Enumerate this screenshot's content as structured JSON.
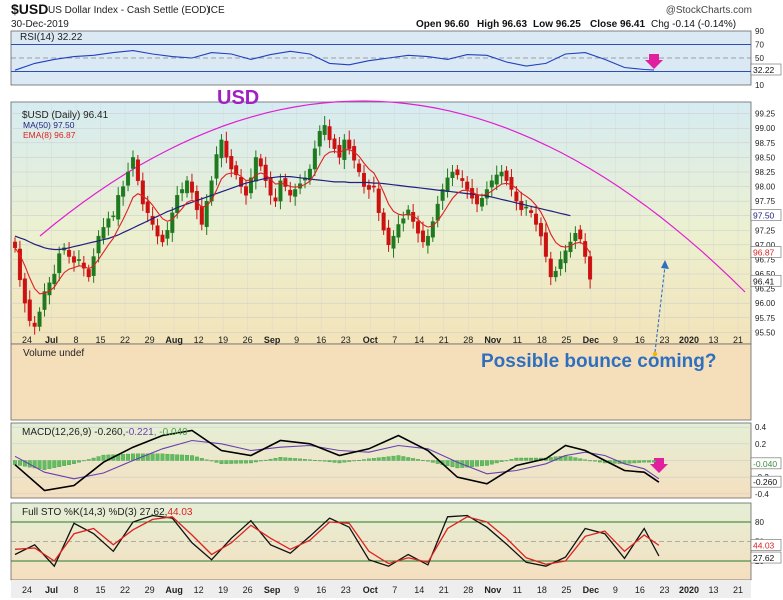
{
  "header": {
    "symbol": "$USD",
    "name": "US Dollar Index - Cash Settle (EOD)",
    "exchange": "ICE",
    "date": "30-Dec-2019",
    "brand": "@StockCharts.com",
    "ohlc": "Open 96.60  High 96.63  Low 96.25  Close 96.41  Volume undef  Chg -0.14 (-0.14%)",
    "ohlc_open": "Open 96.60",
    "ohlc_high": "High 96.63",
    "ohlc_low": "Low 96.25",
    "ohlc_close": "Close 96.41",
    "ohlc_chg": "Chg -0.14 (-0.14%)"
  },
  "colors": {
    "up": "#1f7a1f",
    "down": "#cc1111",
    "ema": "#e02020",
    "ma": "#202080",
    "arc": "#e020d0",
    "annotation_usd": "#a020c0",
    "annotation_bounce": "#2f6fc0",
    "rsi_line": "#2040c0",
    "macd_line": "#000000",
    "signal_line": "#6a3fb0",
    "hist": "#5fbf5f",
    "sto_k": "#111111",
    "sto_d": "#dd2222",
    "pink_arrow": "#e0209f"
  },
  "annotations": {
    "title": "USD",
    "bounce": "Possible bounce coming?"
  },
  "x_axis_labels": [
    "24",
    "Jul",
    "8",
    "15",
    "22",
    "29",
    "Aug",
    "12",
    "19",
    "26",
    "Sep",
    "9",
    "16",
    "23",
    "Oct",
    "7",
    "14",
    "21",
    "28",
    "Nov",
    "11",
    "18",
    "25",
    "Dec",
    "9",
    "16",
    "23",
    "2020",
    "13",
    "21"
  ],
  "chart_data": [
    {
      "type": "line",
      "panel": "rsi",
      "title": "RSI(14) 32.22",
      "ylim": [
        10,
        90
      ],
      "y_ticks": [
        "90",
        "70",
        "50",
        "30",
        "10"
      ],
      "reference_lines": [
        70,
        50,
        30
      ],
      "last_value_label": "32.22",
      "x": [
        0,
        4,
        8,
        12,
        16,
        20,
        24,
        28,
        32,
        36,
        40,
        44,
        48,
        52,
        56,
        60,
        64,
        68,
        72,
        76,
        80,
        84,
        88,
        92,
        96,
        100,
        104,
        108,
        112,
        116,
        120,
        124,
        128,
        130
      ],
      "values": [
        32,
        42,
        48,
        52,
        54,
        58,
        61,
        56,
        52,
        50,
        58,
        56,
        48,
        55,
        60,
        56,
        42,
        40,
        46,
        50,
        54,
        52,
        48,
        55,
        54,
        44,
        38,
        42,
        56,
        58,
        48,
        36,
        33,
        32.22
      ]
    },
    {
      "type": "candlestick",
      "panel": "price",
      "title": "$USD (Daily) 96.41",
      "legend": [
        {
          "label": "MA(50) 97.50"
        },
        {
          "label": "EMA(8) 96.87"
        }
      ],
      "ylim": [
        95.3,
        99.45
      ],
      "y_ticks": [
        "99.25",
        "99.00",
        "98.75",
        "98.50",
        "98.25",
        "98.00",
        "97.75",
        "97.50",
        "97.25",
        "97.00",
        "96.75",
        "96.50",
        "96.25",
        "96.00",
        "95.75",
        "95.50"
      ],
      "value_tags": [
        {
          "value": 97.5,
          "label": "97.50"
        },
        {
          "value": 96.87,
          "label": "96.87"
        },
        {
          "value": 96.41,
          "label": "96.41"
        }
      ],
      "close": [
        96.95,
        96.4,
        96.0,
        95.7,
        95.6,
        95.85,
        96.2,
        96.35,
        96.5,
        96.85,
        96.95,
        96.8,
        96.7,
        96.75,
        96.6,
        96.45,
        96.8,
        97.15,
        97.3,
        97.45,
        97.5,
        97.85,
        98.0,
        98.25,
        98.5,
        98.1,
        97.7,
        97.55,
        97.35,
        97.15,
        97.05,
        97.25,
        97.55,
        97.85,
        97.95,
        98.1,
        97.9,
        97.6,
        97.35,
        97.75,
        98.1,
        98.55,
        98.8,
        98.5,
        98.3,
        98.2,
        98.0,
        97.85,
        98.15,
        98.5,
        98.35,
        98.1,
        97.85,
        97.75,
        98.1,
        98.0,
        97.85,
        97.95,
        98.05,
        98.15,
        98.3,
        98.65,
        98.95,
        99.05,
        98.8,
        98.65,
        98.5,
        98.8,
        98.65,
        98.45,
        98.25,
        98.0,
        97.95,
        98.0,
        97.55,
        97.25,
        97.0,
        97.15,
        97.35,
        97.45,
        97.6,
        97.4,
        97.2,
        97.05,
        97.15,
        97.4,
        97.7,
        97.95,
        98.15,
        98.25,
        98.2,
        98.1,
        97.95,
        97.8,
        97.7,
        97.8,
        97.95,
        98.1,
        98.2,
        98.25,
        98.1,
        97.95,
        97.75,
        97.6,
        97.65,
        97.55,
        97.35,
        97.15,
        96.8,
        96.45,
        96.55,
        96.75,
        96.9,
        97.05,
        97.2,
        97.1,
        96.8,
        96.41
      ],
      "ma50": [
        97.15,
        97.12,
        97.09,
        97.05,
        97.01,
        96.98,
        96.95,
        96.93,
        96.92,
        96.92,
        96.93,
        96.95,
        96.97,
        96.99,
        97.01,
        97.03,
        97.05,
        97.07,
        97.09,
        97.11,
        97.14,
        97.17,
        97.21,
        97.25,
        97.29,
        97.33,
        97.37,
        97.41,
        97.45,
        97.49,
        97.53,
        97.57,
        97.6,
        97.64,
        97.67,
        97.7,
        97.73,
        97.76,
        97.79,
        97.82,
        97.85,
        97.88,
        97.91,
        97.94,
        97.97,
        98.0,
        98.03,
        98.06,
        98.08,
        98.1,
        98.12,
        98.14,
        98.15,
        98.16,
        98.17,
        98.17,
        98.17,
        98.16,
        98.15,
        98.14,
        98.13,
        98.12,
        98.11,
        98.1,
        98.09,
        98.08,
        98.08,
        98.08,
        98.07,
        98.07,
        98.07,
        98.07,
        98.07,
        98.06,
        98.06,
        98.05,
        98.04,
        98.03,
        98.02,
        98.01,
        98.0,
        97.99,
        97.98,
        97.97,
        97.96,
        97.95,
        97.94,
        97.93,
        97.92,
        97.91,
        97.9,
        97.89,
        97.88,
        97.87,
        97.86,
        97.85,
        97.84,
        97.82,
        97.8,
        97.78,
        97.76,
        97.74,
        97.72,
        97.7,
        97.68,
        97.66,
        97.64,
        97.62,
        97.6,
        97.58,
        97.56,
        97.54,
        97.52,
        97.5
      ]
    },
    {
      "type": "area",
      "panel": "volume",
      "title": "Volume undef",
      "values": []
    },
    {
      "type": "line",
      "panel": "macd",
      "title": "MACD(12,26,9) -0.260, -0.221, -0.040",
      "title_parts": {
        "main": "MACD(12,26,9) -0.260,",
        "signal": "-0.221",
        "hist": ", -0.040"
      },
      "ylim": [
        -0.45,
        0.45
      ],
      "y_ticks": [
        "0.4",
        "0.2",
        "0.0",
        "-0.2",
        "-0.4"
      ],
      "value_tags": [
        {
          "value": -0.04,
          "label": "-0.040"
        },
        {
          "value": -0.26,
          "label": "-0.260"
        }
      ],
      "x": [
        0,
        6,
        12,
        18,
        24,
        30,
        36,
        42,
        48,
        54,
        60,
        66,
        72,
        78,
        84,
        90,
        96,
        102,
        108,
        112,
        116,
        120,
        124,
        128,
        131
      ],
      "macd": [
        -0.05,
        -0.36,
        -0.3,
        -0.02,
        0.16,
        0.3,
        0.36,
        0.12,
        0.06,
        0.24,
        0.2,
        0.06,
        0.14,
        0.3,
        0.12,
        -0.2,
        -0.28,
        -0.06,
        0.02,
        0.18,
        0.12,
        0.0,
        -0.12,
        -0.14,
        -0.26
      ],
      "signal": [
        0.05,
        -0.14,
        -0.22,
        -0.15,
        0.0,
        0.14,
        0.24,
        0.2,
        0.12,
        0.16,
        0.18,
        0.12,
        0.1,
        0.18,
        0.14,
        -0.02,
        -0.16,
        -0.12,
        -0.04,
        0.06,
        0.1,
        0.06,
        -0.04,
        -0.1,
        -0.22
      ],
      "histogram": [
        -0.1,
        -0.22,
        -0.08,
        0.13,
        0.16,
        0.16,
        0.12,
        -0.08,
        -0.06,
        0.08,
        0.02,
        -0.06,
        0.04,
        0.12,
        -0.02,
        -0.18,
        -0.12,
        0.06,
        0.06,
        0.12,
        0.02,
        -0.06,
        -0.08,
        -0.04,
        -0.04
      ]
    },
    {
      "type": "line",
      "panel": "stochastic",
      "title": "Full STO %K(14,3) %D(3) 27.62, 44.03",
      "title_parts": {
        "main": "Full STO %K(14,3) %D(3) 27.62,",
        "d": "44.03"
      },
      "ylim": [
        0,
        100
      ],
      "y_ticks": [
        "80",
        "50",
        "20"
      ],
      "reference_lines": [
        80,
        50,
        20
      ],
      "value_tags": [
        {
          "value": 44.03,
          "label": "44.03"
        },
        {
          "value": 27.62,
          "label": "27.62"
        }
      ],
      "x": [
        0,
        4,
        8,
        12,
        16,
        20,
        24,
        28,
        32,
        36,
        40,
        44,
        48,
        52,
        56,
        60,
        64,
        68,
        72,
        76,
        80,
        84,
        88,
        92,
        96,
        100,
        104,
        108,
        112,
        116,
        120,
        124,
        128,
        131
      ],
      "k": [
        30,
        45,
        12,
        78,
        62,
        35,
        80,
        90,
        86,
        48,
        22,
        55,
        82,
        45,
        32,
        58,
        86,
        72,
        22,
        12,
        30,
        14,
        88,
        90,
        72,
        46,
        18,
        12,
        26,
        70,
        62,
        24,
        70,
        27.62
      ],
      "d": [
        38,
        40,
        20,
        62,
        70,
        45,
        68,
        84,
        88,
        60,
        30,
        48,
        75,
        55,
        38,
        52,
        80,
        78,
        35,
        16,
        25,
        18,
        70,
        88,
        80,
        55,
        25,
        15,
        20,
        58,
        66,
        35,
        60,
        44.03
      ]
    }
  ]
}
